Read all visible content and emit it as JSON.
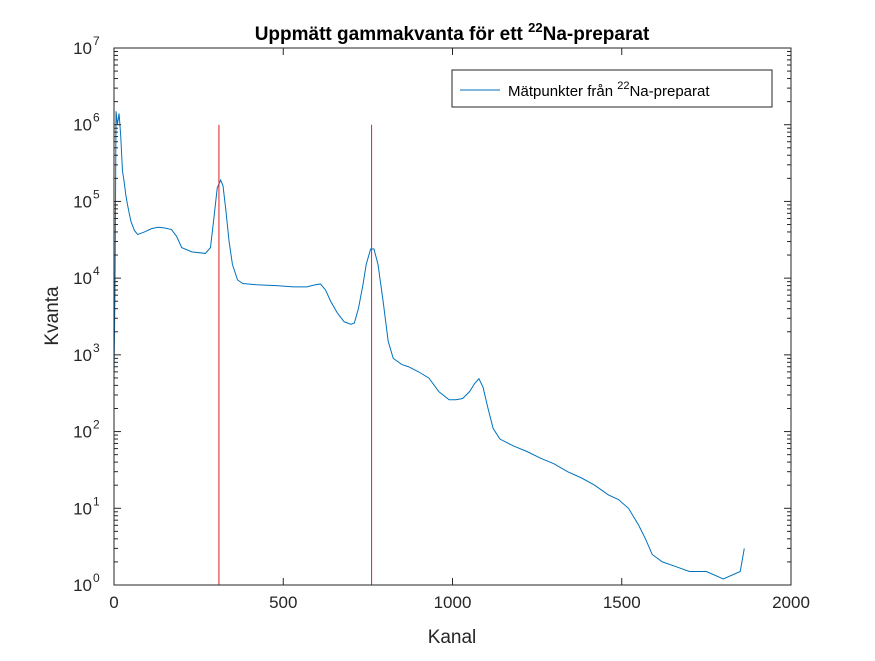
{
  "chart_data": {
    "type": "line",
    "title": "Uppmätt gammakvanta för ett ",
    "title_superscript": "22",
    "title_suffix": "Na-preparat",
    "xlabel": "Kanal",
    "ylabel": "Kvanta",
    "xlim": [
      0,
      2000
    ],
    "ylim": [
      1,
      10000000
    ],
    "yscale": "log",
    "grid": false,
    "legend_position": "top-right",
    "x_ticks": [
      "0",
      "500",
      "1000",
      "1500",
      "2000"
    ],
    "y_ticks": [
      {
        "base": "10",
        "exp": "0"
      },
      {
        "base": "10",
        "exp": "1"
      },
      {
        "base": "10",
        "exp": "2"
      },
      {
        "base": "10",
        "exp": "3"
      },
      {
        "base": "10",
        "exp": "4"
      },
      {
        "base": "10",
        "exp": "5"
      },
      {
        "base": "10",
        "exp": "6"
      },
      {
        "base": "10",
        "exp": "7"
      }
    ],
    "series": [
      {
        "name": "Mätpunkter från ",
        "name_superscript": "22",
        "name_suffix": "Na-preparat",
        "color": "#0072BD",
        "points": [
          [
            0,
            500
          ],
          [
            3,
            8000
          ],
          [
            6,
            1500000
          ],
          [
            10,
            1000000
          ],
          [
            15,
            1400000
          ],
          [
            20,
            700000
          ],
          [
            25,
            250000
          ],
          [
            30,
            180000
          ],
          [
            35,
            120000
          ],
          [
            40,
            90000
          ],
          [
            45,
            70000
          ],
          [
            50,
            55000
          ],
          [
            60,
            42000
          ],
          [
            70,
            37000
          ],
          [
            90,
            40000
          ],
          [
            110,
            44000
          ],
          [
            130,
            46000
          ],
          [
            150,
            45000
          ],
          [
            170,
            43000
          ],
          [
            185,
            35000
          ],
          [
            200,
            25000
          ],
          [
            230,
            22000
          ],
          [
            270,
            21000
          ],
          [
            285,
            25000
          ],
          [
            295,
            60000
          ],
          [
            305,
            150000
          ],
          [
            315,
            190000
          ],
          [
            322,
            160000
          ],
          [
            330,
            80000
          ],
          [
            340,
            30000
          ],
          [
            350,
            15000
          ],
          [
            365,
            9500
          ],
          [
            380,
            8500
          ],
          [
            420,
            8200
          ],
          [
            480,
            8000
          ],
          [
            530,
            7700
          ],
          [
            570,
            7700
          ],
          [
            590,
            8100
          ],
          [
            610,
            8400
          ],
          [
            625,
            7000
          ],
          [
            640,
            5000
          ],
          [
            660,
            3500
          ],
          [
            680,
            2700
          ],
          [
            700,
            2500
          ],
          [
            710,
            2600
          ],
          [
            722,
            4000
          ],
          [
            735,
            8000
          ],
          [
            745,
            15000
          ],
          [
            758,
            24000
          ],
          [
            768,
            24000
          ],
          [
            780,
            15000
          ],
          [
            795,
            5000
          ],
          [
            810,
            1500
          ],
          [
            825,
            900
          ],
          [
            850,
            750
          ],
          [
            870,
            700
          ],
          [
            900,
            600
          ],
          [
            930,
            500
          ],
          [
            960,
            330
          ],
          [
            990,
            260
          ],
          [
            1010,
            260
          ],
          [
            1030,
            270
          ],
          [
            1050,
            330
          ],
          [
            1065,
            420
          ],
          [
            1078,
            490
          ],
          [
            1090,
            380
          ],
          [
            1105,
            200
          ],
          [
            1120,
            110
          ],
          [
            1140,
            80
          ],
          [
            1180,
            65
          ],
          [
            1220,
            55
          ],
          [
            1260,
            45
          ],
          [
            1300,
            38
          ],
          [
            1340,
            30
          ],
          [
            1380,
            25
          ],
          [
            1420,
            20
          ],
          [
            1460,
            15
          ],
          [
            1490,
            13
          ],
          [
            1520,
            10
          ],
          [
            1550,
            6
          ],
          [
            1570,
            4
          ],
          [
            1590,
            2.5
          ],
          [
            1620,
            2
          ],
          [
            1650,
            1.8
          ],
          [
            1700,
            1.5
          ],
          [
            1750,
            1.5
          ],
          [
            1800,
            1.2
          ],
          [
            1850,
            1.5
          ],
          [
            1862,
            3
          ]
        ]
      },
      {
        "color": "#E02020",
        "points": [
          [
            310,
            1
          ],
          [
            310,
            1000000
          ]
        ]
      },
      {
        "color": "#E02020",
        "points": [
          [
            761,
            1
          ],
          [
            761,
            1000000
          ]
        ]
      }
    ]
  }
}
